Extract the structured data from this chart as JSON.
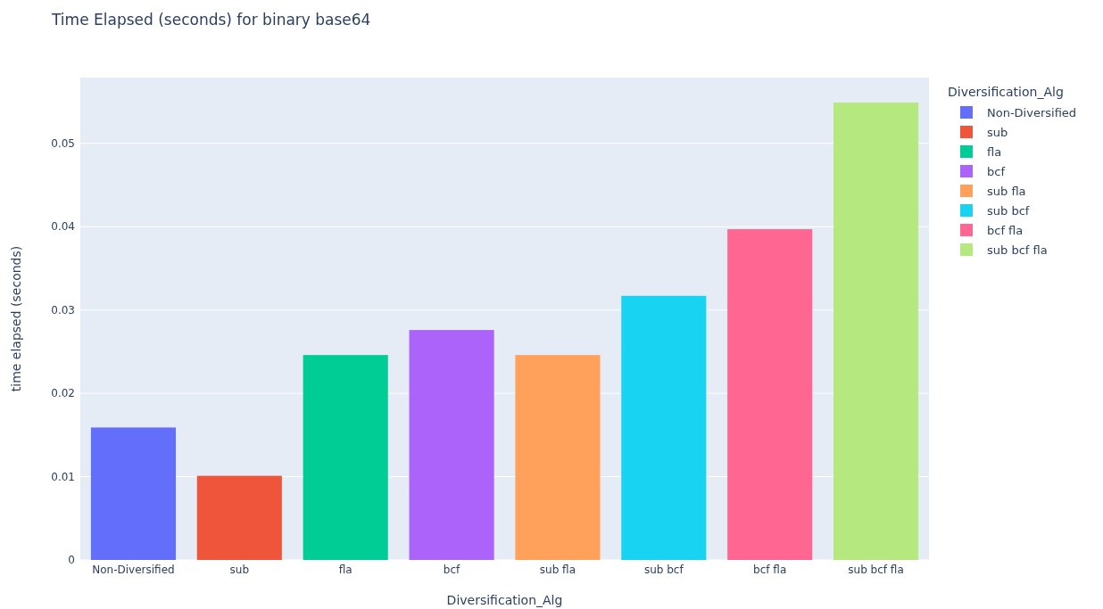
{
  "chart_data": {
    "type": "bar",
    "title": "Time Elapsed (seconds) for binary base64",
    "xlabel": "Diversification_Alg",
    "ylabel": "time elapsed (seconds)",
    "legend_title": "Diversification_Alg",
    "categories": [
      "Non-Diversified",
      "sub",
      "fla",
      "bcf",
      "sub fla",
      "sub bcf",
      "bcf fla",
      "sub bcf fla"
    ],
    "series": [
      {
        "name": "Non-Diversified",
        "color": "#636efa",
        "values": [
          0.0159,
          null,
          null,
          null,
          null,
          null,
          null,
          null
        ]
      },
      {
        "name": "sub",
        "color": "#ef553b",
        "values": [
          null,
          0.0101,
          null,
          null,
          null,
          null,
          null,
          null
        ]
      },
      {
        "name": "fla",
        "color": "#00cc96",
        "values": [
          null,
          null,
          0.0246,
          null,
          null,
          null,
          null,
          null
        ]
      },
      {
        "name": "bcf",
        "color": "#ab63fa",
        "values": [
          null,
          null,
          null,
          0.0276,
          null,
          null,
          null,
          null
        ]
      },
      {
        "name": "sub fla",
        "color": "#ffa15a",
        "values": [
          null,
          null,
          null,
          null,
          0.0246,
          null,
          null,
          null
        ]
      },
      {
        "name": "sub bcf",
        "color": "#19d3f3",
        "values": [
          null,
          null,
          null,
          null,
          null,
          0.0317,
          null,
          null
        ]
      },
      {
        "name": "bcf fla",
        "color": "#ff6692",
        "values": [
          null,
          null,
          null,
          null,
          null,
          null,
          0.0397,
          null
        ]
      },
      {
        "name": "sub bcf fla",
        "color": "#b6e880",
        "values": [
          null,
          null,
          null,
          null,
          null,
          null,
          null,
          0.0549
        ]
      }
    ],
    "ylim": [
      0,
      0.0579
    ],
    "yticks": [
      0,
      0.01,
      0.02,
      0.03,
      0.04,
      0.05
    ],
    "grid": "y",
    "legend": "right"
  }
}
